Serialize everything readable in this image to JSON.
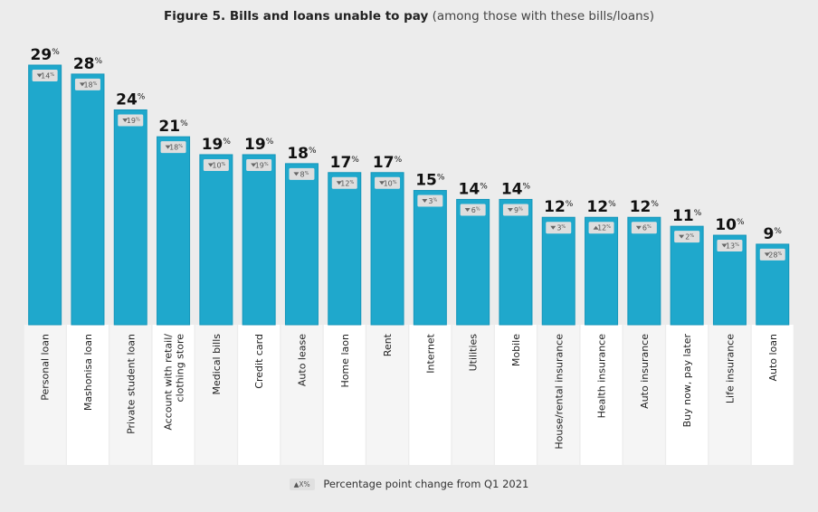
{
  "title": {
    "main": "Figure 5. Bills and loans unable to pay",
    "sub": "(among those with these bills/loans)"
  },
  "legend": {
    "chip": "▲X%",
    "text": "Percentage point change from Q1 2021"
  },
  "colors": {
    "bar": "#1fa8cc",
    "bar_edge": "#1596ba",
    "chip_bg": "#dedede",
    "chip_text": "#555555",
    "label_band_a": "#f5f5f5",
    "label_band_b": "#ffffff"
  },
  "chart_data": {
    "type": "bar",
    "title": "Figure 5. Bills and loans unable to pay (among those with these bills/loans)",
    "categories": [
      "Personal loan",
      "Mashonisa loan",
      "Private student loan",
      "Account with retail/ clothing store",
      "Medical bills",
      "Credit card",
      "Auto lease",
      "Home laon",
      "Rent",
      "Internet",
      "Utilities",
      "Mobile",
      "House/rental insurance",
      "Health insurance",
      "Auto insurance",
      "Buy now, pay later",
      "Life insurance",
      "Auto loan"
    ],
    "values": [
      29,
      28,
      24,
      21,
      19,
      19,
      18,
      17,
      17,
      15,
      14,
      14,
      12,
      12,
      12,
      11,
      10,
      9
    ],
    "value_labels": [
      "29",
      "28",
      "24",
      "21",
      "19",
      "19",
      "18",
      "17",
      "17",
      "15",
      "14",
      "14",
      "12",
      "12",
      "12",
      "11",
      "10",
      "9"
    ],
    "unit": "%",
    "change": [
      {
        "dir": "down",
        "value": 14
      },
      {
        "dir": "down",
        "value": 18
      },
      {
        "dir": "down",
        "value": 19
      },
      {
        "dir": "down",
        "value": 18
      },
      {
        "dir": "down",
        "value": 10
      },
      {
        "dir": "down",
        "value": 19
      },
      {
        "dir": "down",
        "value": 8
      },
      {
        "dir": "down",
        "value": 12
      },
      {
        "dir": "down",
        "value": 10
      },
      {
        "dir": "down",
        "value": 3
      },
      {
        "dir": "down",
        "value": 6
      },
      {
        "dir": "down",
        "value": 9
      },
      {
        "dir": "down",
        "value": 3
      },
      {
        "dir": "up",
        "value": 12
      },
      {
        "dir": "down",
        "value": 6
      },
      {
        "dir": "down",
        "value": 2
      },
      {
        "dir": "down",
        "value": 13
      },
      {
        "dir": "down",
        "value": 28
      }
    ],
    "ylim": [
      0,
      29
    ],
    "grid": false,
    "legend_position": "bottom-center"
  }
}
